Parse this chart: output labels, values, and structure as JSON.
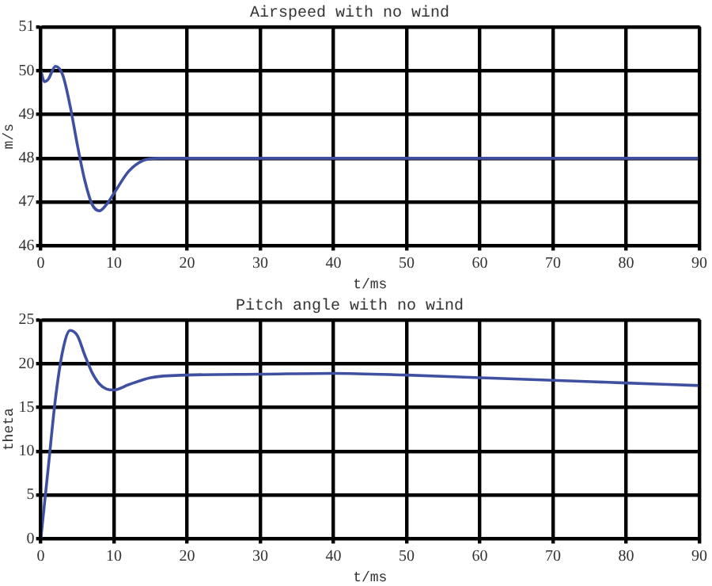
{
  "chart_data": [
    {
      "type": "line",
      "title": "Airspeed with no wind",
      "xlabel": "t/ms",
      "ylabel": "m/s",
      "x": [
        0,
        0.5,
        1,
        2,
        3,
        4,
        5,
        6,
        7,
        8,
        9,
        10,
        12,
        14,
        16,
        20,
        30,
        50,
        70,
        90
      ],
      "series": [
        {
          "color": "#4050a0",
          "values": [
            50,
            49.75,
            49.8,
            50.1,
            49.9,
            49.2,
            48.3,
            47.5,
            46.95,
            46.8,
            46.95,
            47.2,
            47.7,
            47.95,
            48,
            48,
            48,
            48,
            48,
            48
          ]
        }
      ],
      "xlim": [
        0,
        90
      ],
      "xticks": [
        0,
        10,
        20,
        30,
        40,
        50,
        60,
        70,
        80,
        90
      ],
      "ylim": [
        46,
        51
      ],
      "yticks": [
        46,
        47,
        48,
        49,
        50,
        51
      ],
      "grid": true,
      "line_style": "solid",
      "marker": "none",
      "legend": false
    },
    {
      "type": "line",
      "title": "Pitch angle with no wind",
      "xlabel": "t/ms",
      "ylabel": "theta",
      "x": [
        0,
        1,
        2,
        3,
        4,
        5,
        6,
        7,
        8,
        9,
        10,
        12,
        15,
        20,
        30,
        40,
        50,
        60,
        70,
        80,
        90
      ],
      "series": [
        {
          "color": "#4050a0",
          "values": [
            0,
            8,
            16,
            21.5,
            23.8,
            23.2,
            21,
            19,
            17.7,
            17.1,
            17,
            17.6,
            18.4,
            18.7,
            18.8,
            18.9,
            18.7,
            18.4,
            18.1,
            17.8,
            17.5
          ]
        }
      ],
      "xlim": [
        0,
        90
      ],
      "xticks": [
        0,
        10,
        20,
        30,
        40,
        50,
        60,
        70,
        80,
        90
      ],
      "ylim": [
        0,
        25
      ],
      "yticks": [
        0,
        5,
        10,
        15,
        20,
        25
      ],
      "grid": true,
      "line_style": "solid",
      "marker": "none",
      "legend": false
    }
  ]
}
